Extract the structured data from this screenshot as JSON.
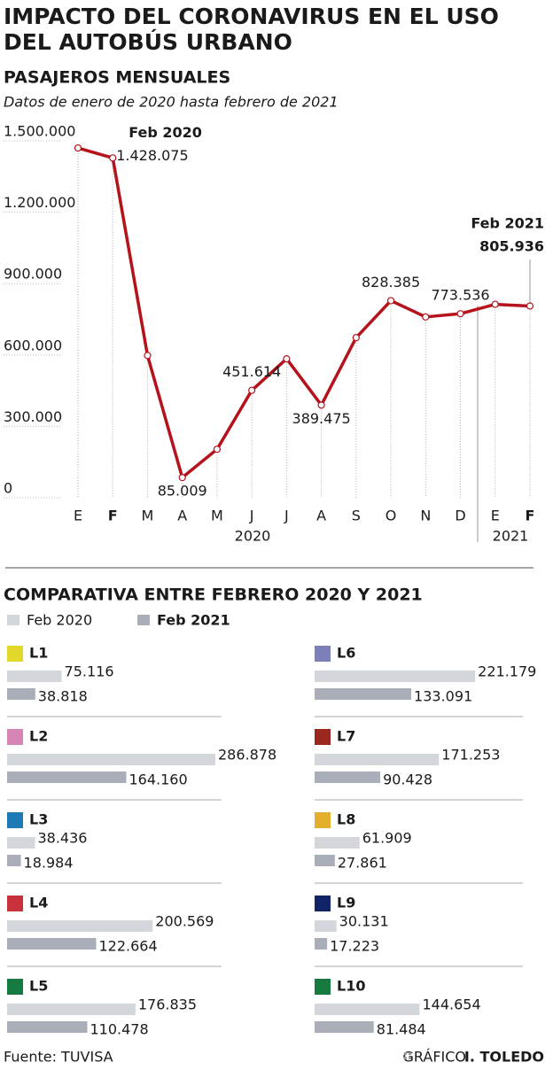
{
  "header": {
    "title_lines": [
      "IMPACTO DEL CORONAVIRUS EN EL USO",
      "DEL AUTOBÚS URBANO"
    ]
  },
  "chart_data": [
    {
      "type": "line",
      "title": "PASAJEROS MENSUALES",
      "subtitle": "Datos de enero de 2020 hasta febrero de 2021",
      "categories": [
        "E",
        "F",
        "M",
        "A",
        "M",
        "J",
        "J",
        "A",
        "S",
        "O",
        "N",
        "D",
        "E",
        "F"
      ],
      "year_labels": [
        "2020",
        "2021"
      ],
      "values": [
        1470000,
        1428075,
        598000,
        85009,
        204000,
        451614,
        584000,
        389475,
        673000,
        828385,
        760000,
        773536,
        813000,
        805936
      ],
      "value_labels": [
        null,
        "1.428.075",
        null,
        "85.009",
        null,
        "451.614",
        null,
        "389.475",
        null,
        "828.385",
        null,
        "773.536",
        null,
        "805.936"
      ],
      "point_notes": [
        null,
        "Feb 2020",
        null,
        null,
        null,
        null,
        null,
        null,
        null,
        null,
        null,
        null,
        null,
        "Feb 2021"
      ],
      "color": "#b5121b",
      "ylim": [
        0,
        1500000
      ],
      "yticks": [
        0,
        {
          "value": 300000,
          "label": "300.000"
        },
        {
          "value": 600000,
          "label": "600.000"
        },
        {
          "value": 900000,
          "label": "900.000"
        },
        {
          "value": 1200000,
          "label": "1.200.000"
        },
        {
          "value": 1500000,
          "label": "1.500.000"
        }
      ],
      "grid": true
    },
    {
      "type": "bar",
      "title": "COMPARATIVA ENTRE  FEBRERO 2020 Y 2021",
      "categories": [
        "L1",
        "L2",
        "L3",
        "L4",
        "L5",
        "L6",
        "L7",
        "L8",
        "L9",
        "L10"
      ],
      "category_colors": [
        "#e2d82a",
        "#d785b4",
        "#1d7ab5",
        "#c8303c",
        "#157a3f",
        "#7c7fb8",
        "#9a2820",
        "#e3ae2b",
        "#102466",
        "#167a3e"
      ],
      "series": [
        {
          "name": "Feb 2020",
          "color": "#d3d6db",
          "values": [
            75116,
            286878,
            38436,
            200569,
            176835,
            221179,
            171253,
            61909,
            30131,
            144654
          ],
          "value_labels": [
            "75.116",
            "286.878",
            "38.436",
            "200.569",
            "176.835",
            "221.179",
            "171.253",
            "61.909",
            "30.131",
            "144.654"
          ]
        },
        {
          "name": "Feb 2021",
          "color": "#a9aeb8",
          "values": [
            38818,
            164160,
            18984,
            122664,
            110478,
            133091,
            90428,
            27861,
            17223,
            81484
          ],
          "value_labels": [
            "38.818",
            "164.160",
            "18.984",
            "122.664",
            "110.478",
            "133.091",
            "90.428",
            "27.861",
            "17.223",
            "81.484"
          ]
        }
      ]
    }
  ],
  "footer": {
    "source": "Fuente: TUVISA",
    "credit_label": "GRÁFICO",
    "credit_author": "I. TOLEDO"
  }
}
